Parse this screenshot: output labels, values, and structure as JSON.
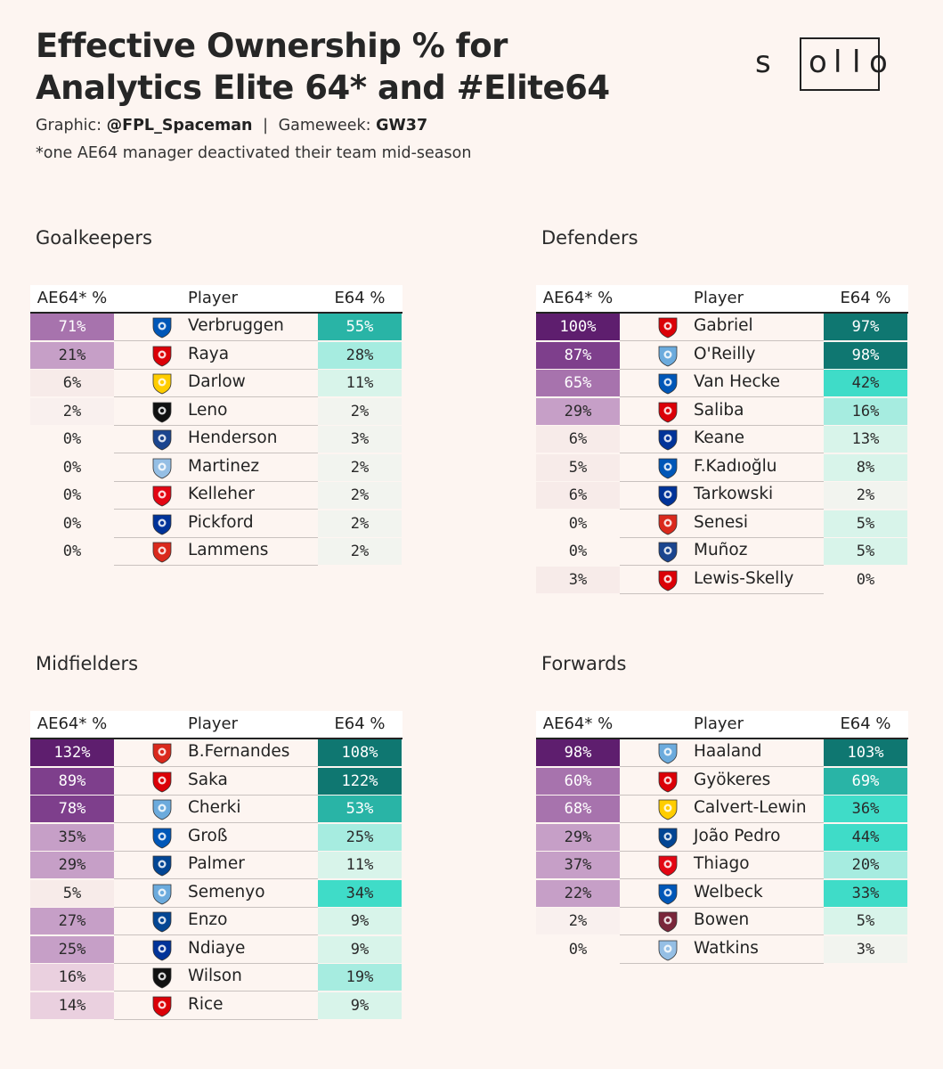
{
  "header": {
    "title_line1": "Effective Ownership % for",
    "title_line2": "Analytics Elite 64* and #Elite64",
    "credit_prefix": "Graphic:",
    "credit_handle": "@FPL_Spaceman",
    "credit_sep": "|",
    "gameweek_label": "Gameweek:",
    "gameweek": "GW37",
    "footnote": "*one AE64 manager deactivated their team mid-season"
  },
  "logo": {
    "letters": [
      "s",
      "o",
      "l",
      "l",
      "o"
    ]
  },
  "columns": {
    "ae": "AE64* %",
    "player": "Player",
    "e64": "E64 %"
  },
  "colors": {
    "purple_scale": [
      "#f7ebe9",
      "#ead0df",
      "#c69fc7",
      "#a773ad",
      "#7e3f8c",
      "#5e1e6e"
    ],
    "teal_scale": [
      "#f2f4ef",
      "#d8f4ea",
      "#a6ece0",
      "#3fdcc8",
      "#29b4a6",
      "#0f7771"
    ],
    "clubs": {
      "BHA": "#0057b8",
      "ARS": "#db0007",
      "LEE": "#ffcd00",
      "FUL": "#111111",
      "CRY": "#1b458f",
      "AVL": "#95bfe5",
      "BRE": "#e30613",
      "EVE": "#003399",
      "MUN": "#da291c",
      "MCI": "#6cabdd",
      "BOU": "#da291c",
      "CHE": "#034694",
      "WHU": "#7a263a"
    }
  },
  "panels": [
    {
      "title": "Goalkeepers",
      "rows": [
        {
          "ae": "71%",
          "ae_v": 71,
          "player": "Verbruggen",
          "club": "BHA",
          "e64": "55%",
          "e64_v": 55
        },
        {
          "ae": "21%",
          "ae_v": 21,
          "player": "Raya",
          "club": "ARS",
          "e64": "28%",
          "e64_v": 28
        },
        {
          "ae": "6%",
          "ae_v": 6,
          "player": "Darlow",
          "club": "LEE",
          "e64": "11%",
          "e64_v": 11
        },
        {
          "ae": "2%",
          "ae_v": 2,
          "player": "Leno",
          "club": "FUL",
          "e64": "2%",
          "e64_v": 2
        },
        {
          "ae": "0%",
          "ae_v": 0,
          "player": "Henderson",
          "club": "CRY",
          "e64": "3%",
          "e64_v": 3
        },
        {
          "ae": "0%",
          "ae_v": 0,
          "player": "Martinez",
          "club": "AVL",
          "e64": "2%",
          "e64_v": 2
        },
        {
          "ae": "0%",
          "ae_v": 0,
          "player": "Kelleher",
          "club": "BRE",
          "e64": "2%",
          "e64_v": 2
        },
        {
          "ae": "0%",
          "ae_v": 0,
          "player": "Pickford",
          "club": "EVE",
          "e64": "2%",
          "e64_v": 2
        },
        {
          "ae": "0%",
          "ae_v": 0,
          "player": "Lammens",
          "club": "MUN",
          "e64": "2%",
          "e64_v": 2
        }
      ]
    },
    {
      "title": "Defenders",
      "rows": [
        {
          "ae": "100%",
          "ae_v": 100,
          "player": "Gabriel",
          "club": "ARS",
          "e64": "97%",
          "e64_v": 97
        },
        {
          "ae": "87%",
          "ae_v": 87,
          "player": "O'Reilly",
          "club": "MCI",
          "e64": "98%",
          "e64_v": 98
        },
        {
          "ae": "65%",
          "ae_v": 65,
          "player": "Van Hecke",
          "club": "BHA",
          "e64": "42%",
          "e64_v": 42
        },
        {
          "ae": "29%",
          "ae_v": 29,
          "player": "Saliba",
          "club": "ARS",
          "e64": "16%",
          "e64_v": 16
        },
        {
          "ae": "6%",
          "ae_v": 6,
          "player": "Keane",
          "club": "EVE",
          "e64": "13%",
          "e64_v": 13
        },
        {
          "ae": "5%",
          "ae_v": 5,
          "player": "F.Kadıoğlu",
          "club": "BHA",
          "e64": "8%",
          "e64_v": 8
        },
        {
          "ae": "6%",
          "ae_v": 6,
          "player": "Tarkowski",
          "club": "EVE",
          "e64": "2%",
          "e64_v": 2
        },
        {
          "ae": "0%",
          "ae_v": 0,
          "player": "Senesi",
          "club": "BOU",
          "e64": "5%",
          "e64_v": 5
        },
        {
          "ae": "0%",
          "ae_v": 0,
          "player": "Muñoz",
          "club": "CRY",
          "e64": "5%",
          "e64_v": 5
        },
        {
          "ae": "3%",
          "ae_v": 3,
          "player": "Lewis-Skelly",
          "club": "ARS",
          "e64": "0%",
          "e64_v": 0
        }
      ]
    },
    {
      "title": "Midfielders",
      "rows": [
        {
          "ae": "132%",
          "ae_v": 132,
          "player": "B.Fernandes",
          "club": "MUN",
          "e64": "108%",
          "e64_v": 108
        },
        {
          "ae": "89%",
          "ae_v": 89,
          "player": "Saka",
          "club": "ARS",
          "e64": "122%",
          "e64_v": 122
        },
        {
          "ae": "78%",
          "ae_v": 78,
          "player": "Cherki",
          "club": "MCI",
          "e64": "53%",
          "e64_v": 53
        },
        {
          "ae": "35%",
          "ae_v": 35,
          "player": "Groß",
          "club": "BHA",
          "e64": "25%",
          "e64_v": 25
        },
        {
          "ae": "29%",
          "ae_v": 29,
          "player": "Palmer",
          "club": "CHE",
          "e64": "11%",
          "e64_v": 11
        },
        {
          "ae": "5%",
          "ae_v": 5,
          "player": "Semenyo",
          "club": "MCI",
          "e64": "34%",
          "e64_v": 34
        },
        {
          "ae": "27%",
          "ae_v": 27,
          "player": "Enzo",
          "club": "CHE",
          "e64": "9%",
          "e64_v": 9
        },
        {
          "ae": "25%",
          "ae_v": 25,
          "player": "Ndiaye",
          "club": "EVE",
          "e64": "9%",
          "e64_v": 9
        },
        {
          "ae": "16%",
          "ae_v": 16,
          "player": "Wilson",
          "club": "FUL",
          "e64": "19%",
          "e64_v": 19
        },
        {
          "ae": "14%",
          "ae_v": 14,
          "player": "Rice",
          "club": "ARS",
          "e64": "9%",
          "e64_v": 9
        }
      ]
    },
    {
      "title": "Forwards",
      "rows": [
        {
          "ae": "98%",
          "ae_v": 98,
          "player": "Haaland",
          "club": "MCI",
          "e64": "103%",
          "e64_v": 103
        },
        {
          "ae": "60%",
          "ae_v": 60,
          "player": "Gyökeres",
          "club": "ARS",
          "e64": "69%",
          "e64_v": 69
        },
        {
          "ae": "68%",
          "ae_v": 68,
          "player": "Calvert-Lewin",
          "club": "LEE",
          "e64": "36%",
          "e64_v": 36
        },
        {
          "ae": "29%",
          "ae_v": 29,
          "player": "João Pedro",
          "club": "CHE",
          "e64": "44%",
          "e64_v": 44
        },
        {
          "ae": "37%",
          "ae_v": 37,
          "player": "Thiago",
          "club": "BRE",
          "e64": "20%",
          "e64_v": 20
        },
        {
          "ae": "22%",
          "ae_v": 22,
          "player": "Welbeck",
          "club": "BHA",
          "e64": "33%",
          "e64_v": 33
        },
        {
          "ae": "2%",
          "ae_v": 2,
          "player": "Bowen",
          "club": "WHU",
          "e64": "5%",
          "e64_v": 5
        },
        {
          "ae": "0%",
          "ae_v": 0,
          "player": "Watkins",
          "club": "AVL",
          "e64": "3%",
          "e64_v": 3
        }
      ]
    }
  ]
}
